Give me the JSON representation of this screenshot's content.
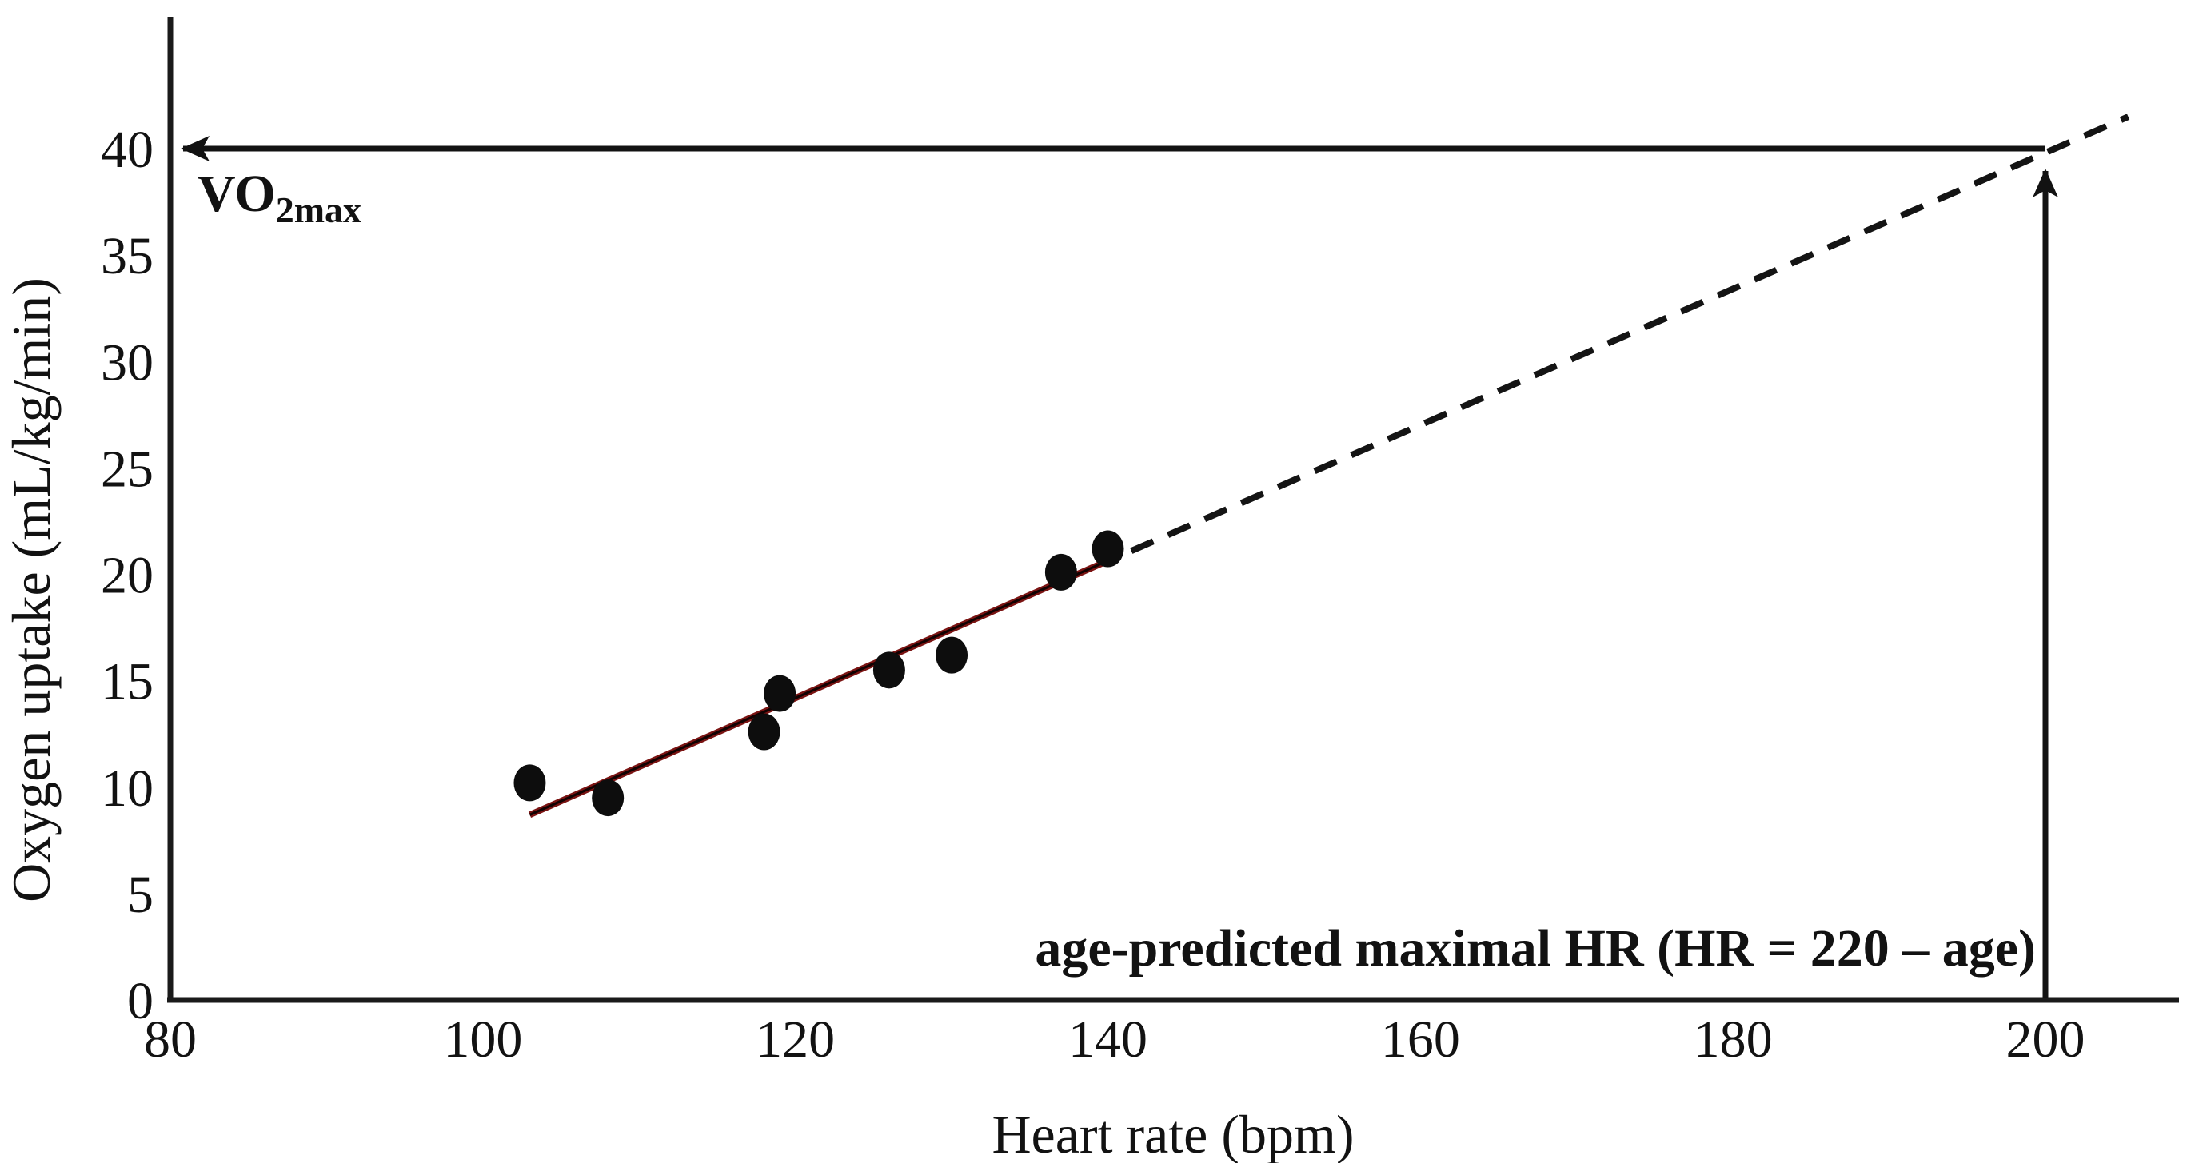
{
  "chart_data": {
    "type": "scatter",
    "title": "",
    "xlabel": "Heart rate (bpm)",
    "ylabel": "Oxygen uptake (mL/kg/min)",
    "x_ticks": [
      80,
      100,
      120,
      140,
      160,
      180,
      200
    ],
    "y_ticks": [
      0,
      5,
      10,
      15,
      20,
      25,
      30,
      35,
      40
    ],
    "xlim": [
      80,
      208
    ],
    "ylim": [
      0,
      44
    ],
    "grid": false,
    "legend": false,
    "points_hr_vs_vo2": [
      [
        103,
        10.2
      ],
      [
        108,
        9.5
      ],
      [
        118,
        12.6
      ],
      [
        119,
        14.4
      ],
      [
        126,
        15.5
      ],
      [
        130,
        16.2
      ],
      [
        137,
        20.1
      ],
      [
        140,
        21.2
      ]
    ],
    "regression_solid_line": {
      "x_start": 103,
      "y_start": 8.7,
      "x_end": 140.5,
      "y_end": 20.8
    },
    "extrapolation_dashed_line": {
      "x_start": 141.5,
      "y_start": 21.1,
      "x_end": 205.3,
      "y_end": 41.5
    },
    "vo2max_reference_arrow": {
      "y_value": 40,
      "from_x": 200,
      "to_x": 80
    },
    "max_hr_reference_arrow": {
      "x_value": 200,
      "from_y": 0,
      "to_y": 39.4
    },
    "colors": {
      "axis": "#1a1a1a",
      "point": "#0d0d0d",
      "regression_outer": "#7b1413",
      "regression_core": "#120202",
      "dashed_line": "#141414",
      "arrow": "#121212"
    }
  },
  "annotations": {
    "vo2max": {
      "main": "VO",
      "sub": "2max"
    },
    "age_predicted": "age-predicted maximal HR (HR = 220 – age)"
  }
}
